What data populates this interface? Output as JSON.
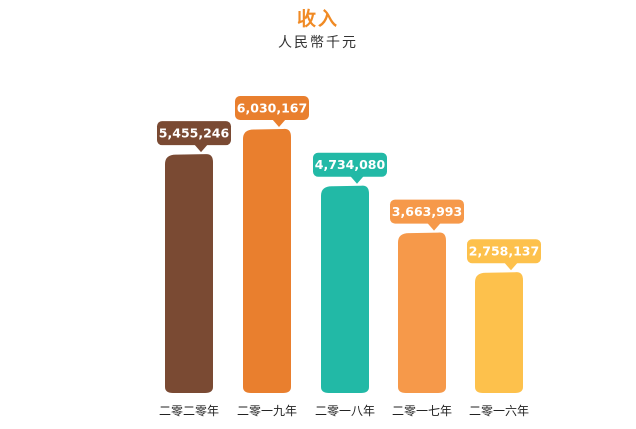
{
  "header": {
    "title": "收入",
    "subtitle": "人民幣千元"
  },
  "chart_data": {
    "type": "bar",
    "title": "收入",
    "subtitle": "人民幣千元",
    "categories": [
      "二零二零年",
      "二零一九年",
      "二零一八年",
      "二零一七年",
      "二零一六年"
    ],
    "values": [
      5455246,
      6030167,
      4734080,
      3663993,
      2758137
    ],
    "value_labels": [
      "5,455,246",
      "6,030,167",
      "4,734,080",
      "3,663,993",
      "2,758,137"
    ],
    "colors": [
      "#7a4a33",
      "#e97f2e",
      "#22b9a6",
      "#f6994a",
      "#fdc14c"
    ],
    "ylim": [
      0,
      6030167
    ],
    "grid": false,
    "legend": "none"
  }
}
